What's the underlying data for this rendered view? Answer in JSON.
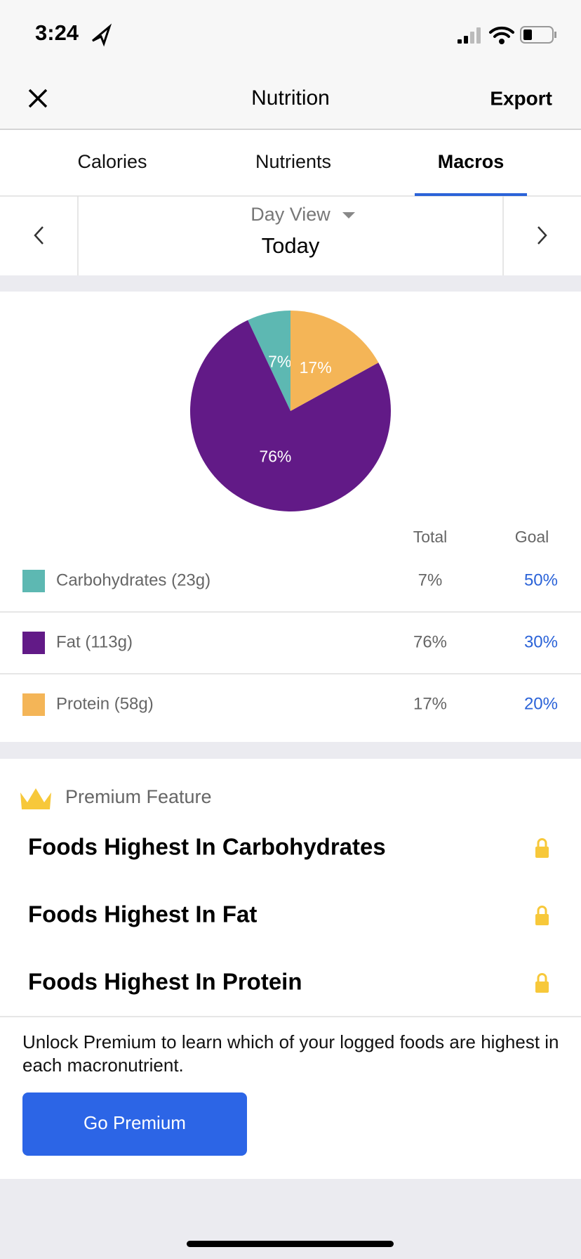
{
  "status_bar": {
    "time": "3:24"
  },
  "header": {
    "title": "Nutrition",
    "action": "Export"
  },
  "tabs": [
    "Calories",
    "Nutrients",
    "Macros"
  ],
  "date_nav": {
    "view": "Day View",
    "date": "Today"
  },
  "chart_data": {
    "type": "pie",
    "categories": [
      "Carbohydrates (23g)",
      "Fat (113g)",
      "Protein (58g)"
    ],
    "values": [
      7,
      76,
      17
    ],
    "value_labels": [
      "7%",
      "76%",
      "17%"
    ],
    "colors": [
      "#5db8b2",
      "#621a87",
      "#f4b557"
    ]
  },
  "macro_table": {
    "columns": [
      "Total",
      "Goal"
    ],
    "rows": [
      [
        "7%",
        "50%"
      ],
      [
        "76%",
        "30%"
      ],
      [
        "17%",
        "20%"
      ]
    ]
  },
  "premium": {
    "label": "Premium Feature",
    "items": [
      "Foods Highest In Carbohydrates",
      "Foods Highest In Fat",
      "Foods Highest In Protein"
    ],
    "message": "Unlock Premium to learn which of your logged foods are highest in each macronutrient.",
    "button": "Go Premium"
  }
}
